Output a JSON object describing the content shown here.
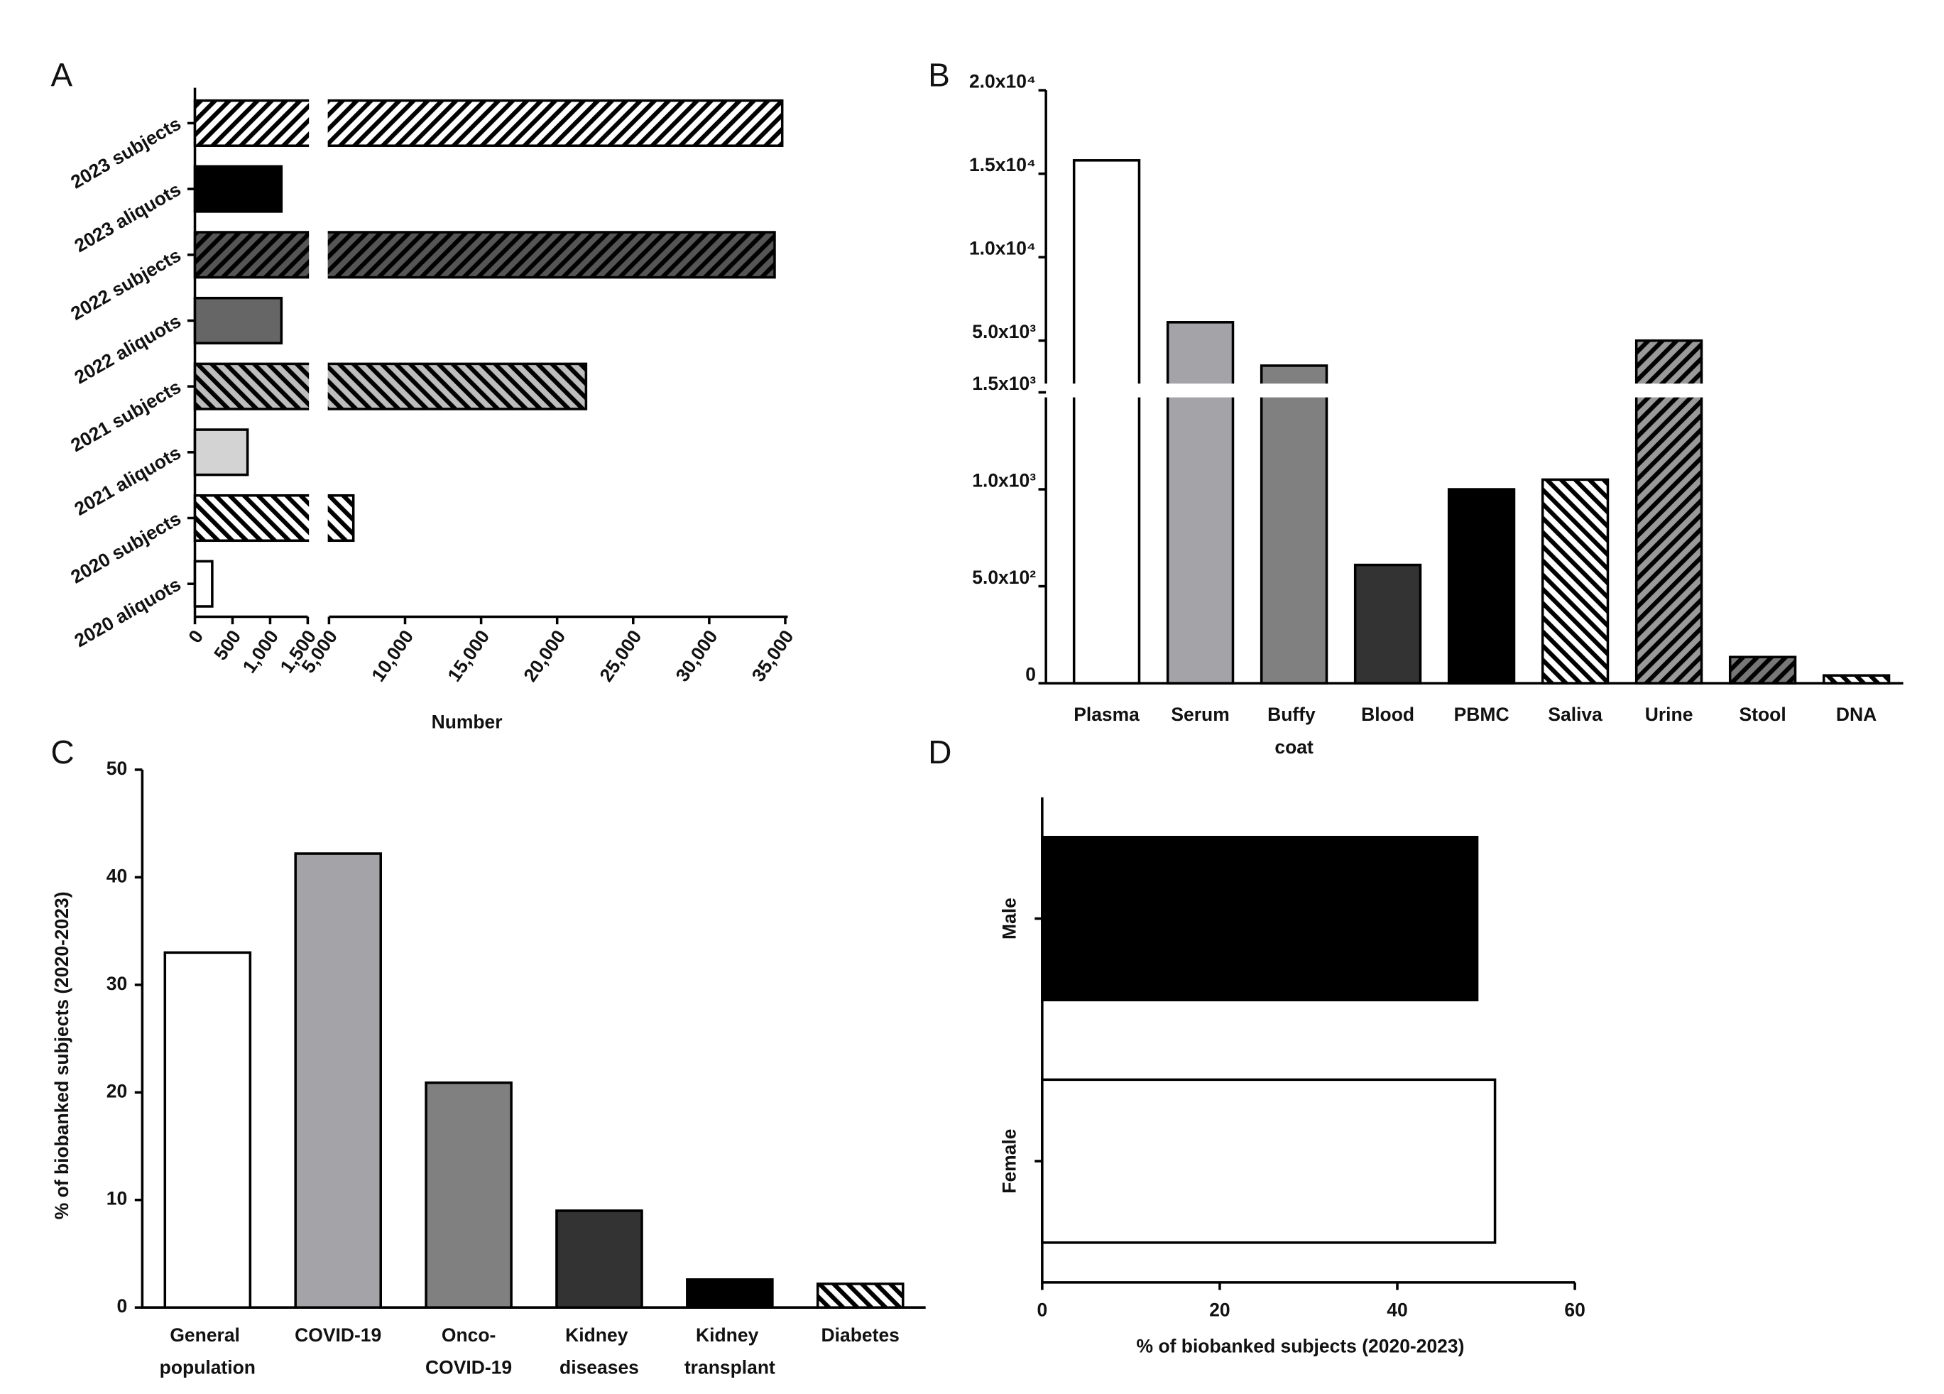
{
  "chart_data": [
    {
      "type": "hbar_broken",
      "panel": "A",
      "xlabel": "Number",
      "categories": [
        "2023 subjects",
        "2023 aliquots",
        "2022 subjects",
        "2022 aliquots",
        "2021 subjects",
        "2021 aliquots",
        "2020 subjects",
        "2020 aliquots"
      ],
      "values": [
        34800,
        1150,
        34300,
        1150,
        21900,
        700,
        6600,
        230
      ],
      "colors": [
        "#ffffff",
        "#000000",
        "#555555",
        "#666666",
        "#bdbdbd",
        "#d3d3d3",
        "#ffffff",
        "#ffffff"
      ],
      "hatch": [
        "forward",
        "none",
        "forward",
        "none",
        "back",
        "none",
        "back",
        "none"
      ],
      "xlim": [
        0,
        35000
      ],
      "axis_break": [
        1500,
        5000
      ],
      "xticks": [
        0,
        500,
        {
          "value": 1000,
          "label": "1,000"
        },
        {
          "value": 1500,
          "label": "1,500"
        },
        {
          "value": 5000,
          "label": "5,000"
        },
        {
          "value": 10000,
          "label": "10,000"
        },
        {
          "value": 15000,
          "label": "15,000"
        },
        {
          "value": 20000,
          "label": "20,000"
        },
        {
          "value": 25000,
          "label": "25,000"
        },
        {
          "value": 30000,
          "label": "30,000"
        },
        {
          "value": 35000,
          "label": "35,000"
        }
      ]
    },
    {
      "type": "bar_broken",
      "panel": "B",
      "categories": [
        "Plasma",
        "Serum",
        "Buffy coat",
        "Blood",
        "PBMC",
        "Saliva",
        "Urine",
        "Stool",
        "DNA"
      ],
      "values": [
        15800,
        6100,
        3500,
        610,
        1000,
        1050,
        5000,
        135,
        40
      ],
      "colors": [
        "#ffffff",
        "#a4a4a8",
        "#808080",
        "#333333",
        "#000000",
        "#ffffff",
        "#999999",
        "#777777",
        "#ffffff"
      ],
      "hatch": [
        "none",
        "none",
        "none",
        "none",
        "none",
        "back",
        "forward",
        "forward",
        "back"
      ],
      "ylim": [
        0,
        20000
      ],
      "axis_break": [
        1500,
        2500
      ],
      "yticks": [
        0,
        {
          "value": 500,
          "label": "5.0x10²"
        },
        {
          "value": 1000,
          "label": "1.0x10³"
        },
        {
          "value": 1500,
          "label": "1.5x10³"
        },
        {
          "value": 5000,
          "label": "5.0x10³"
        },
        {
          "value": 10000,
          "label": "1.0x10⁴"
        },
        {
          "value": 15000,
          "label": "1.5x10⁴"
        },
        {
          "value": 20000,
          "label": "2.0x10⁴"
        }
      ]
    },
    {
      "type": "bar",
      "panel": "C",
      "ylabel": "% of biobanked subjects (2020-2023)",
      "categories": [
        "General population",
        "COVID-19",
        "Onco-COVID-19",
        "Kidney diseases",
        "Kidney transplant",
        "Diabetes"
      ],
      "values": [
        33.0,
        42.2,
        20.9,
        9.0,
        2.6,
        2.2
      ],
      "colors": [
        "#ffffff",
        "#a4a4a8",
        "#808080",
        "#333333",
        "#000000",
        "#ffffff"
      ],
      "hatch": [
        "none",
        "none",
        "none",
        "none",
        "none",
        "back"
      ],
      "ylim": [
        0,
        50
      ],
      "yticks": [
        0,
        10,
        20,
        30,
        40,
        50
      ]
    },
    {
      "type": "hbar",
      "panel": "D",
      "xlabel": "% of biobanked subjects (2020-2023)",
      "categories": [
        "Male",
        "Female"
      ],
      "values": [
        49.0,
        51.0
      ],
      "colors": [
        "#000000",
        "#ffffff"
      ],
      "hatch": [
        "none",
        "none"
      ],
      "xlim": [
        0,
        60
      ],
      "xticks": [
        0,
        20,
        40,
        60
      ]
    }
  ]
}
